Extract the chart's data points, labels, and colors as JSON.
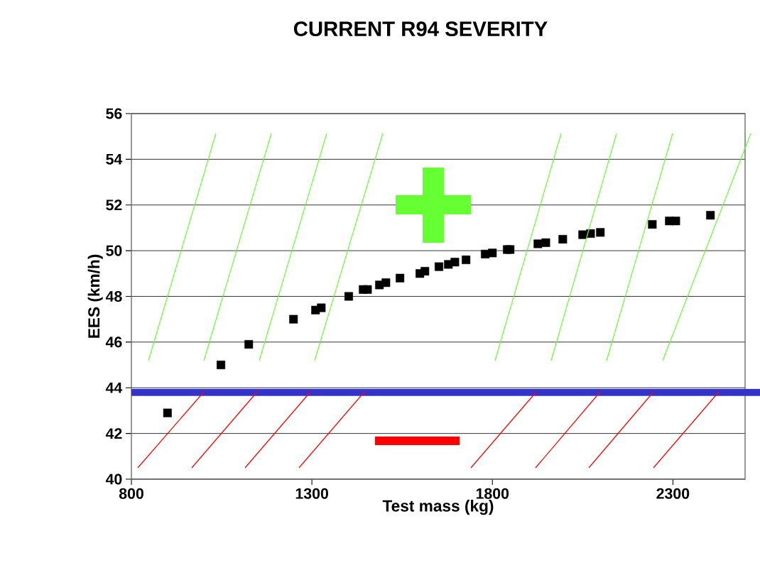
{
  "chart_data": {
    "type": "scatter",
    "title": "CURRENT R94 SEVERITY",
    "xlabel": "Test mass (kg)",
    "ylabel": "EES (km/h)",
    "x": [
      900,
      1048,
      1125,
      1249,
      1310,
      1326,
      1402,
      1442,
      1454,
      1487,
      1505,
      1544,
      1599,
      1613,
      1652,
      1678,
      1696,
      1727,
      1780,
      1800,
      1841,
      1849,
      1926,
      1948,
      1995,
      2050,
      2072,
      2099,
      2243,
      2290,
      2308,
      2404
    ],
    "values": [
      42.9,
      45.0,
      45.9,
      47.0,
      47.4,
      47.5,
      48.0,
      48.3,
      48.3,
      48.5,
      48.6,
      48.8,
      49.0,
      49.1,
      49.3,
      49.4,
      49.5,
      49.6,
      49.85,
      49.9,
      50.05,
      50.05,
      50.3,
      50.35,
      50.5,
      50.7,
      50.75,
      50.8,
      51.15,
      51.3,
      51.3,
      51.55
    ],
    "color": "#000000",
    "marker": "square",
    "xlim": [
      800,
      2500
    ],
    "ylim": [
      40,
      56
    ],
    "xticks": [
      800,
      1300,
      1800,
      2300
    ],
    "yticks": [
      40,
      42,
      44,
      46,
      48,
      50,
      52,
      54,
      56
    ],
    "grid": "y",
    "ref_lines": [
      {
        "axis": "y",
        "value": 43.8,
        "color": "#3333cc"
      }
    ]
  }
}
